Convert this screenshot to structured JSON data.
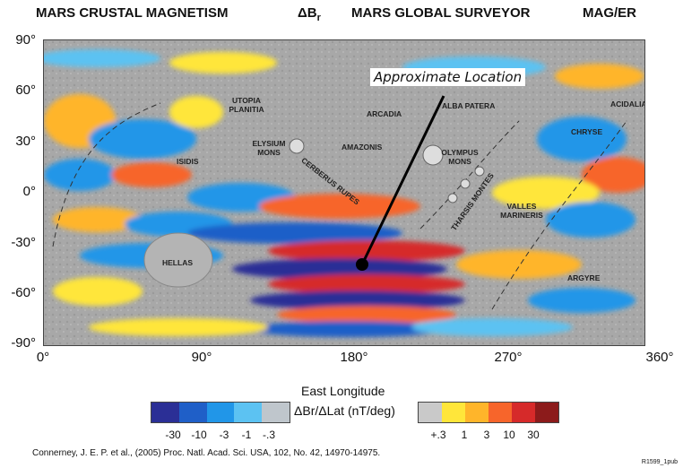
{
  "header": {
    "title": "MARS CRUSTAL MAGNETISM",
    "quantity_main": "ΔB",
    "quantity_sub": "r",
    "mission": "MARS GLOBAL SURVEYOR",
    "instrument": "MAG/ER"
  },
  "axes": {
    "y_ticks": [
      "90°",
      "60°",
      "30°",
      "0°",
      "-30°",
      "-60°",
      "-90°"
    ],
    "x_ticks": [
      "0°",
      "90°",
      "180°",
      "270°",
      "360°"
    ],
    "x_title": "East Longitude"
  },
  "regions": {
    "utopia": "UTOPIA PLANITIA",
    "arcadia": "ARCADIA",
    "alba": "ALBA PATERA",
    "acidalia": "ACIDALIA",
    "elysium": "ELYSIUM MONS",
    "amazonis": "AMAZONIS",
    "olympus": "OLYMPUS MONS",
    "chryse": "CHRYSE",
    "isidis": "ISIDIS",
    "cerberus": "CERBERUS RUPES",
    "tharsis": "THARSIS MONTES",
    "valles": "VALLES MARINERIS",
    "hellas": "HELLAS",
    "argyre": "ARGYRE"
  },
  "annotation": {
    "callout": "Approximate Location",
    "marker_lon": 180,
    "marker_lat": -45
  },
  "legend": {
    "label": "ΔBr/ΔLat (nT/deg)",
    "neg_ticks": [
      "-30",
      "-10",
      "-3",
      "-1",
      "-.3"
    ],
    "pos_ticks": [
      "+.3",
      "1",
      "3",
      "10",
      "30"
    ],
    "neg_colors": [
      "#2b2f96",
      "#1f5fc8",
      "#2196e8",
      "#5cc2f2",
      "#bfc6cc"
    ],
    "pos_colors": [
      "#c9c9c9",
      "#ffe63a",
      "#ffb52a",
      "#f7652b",
      "#d62a2a",
      "#8c1b1b"
    ]
  },
  "citation": "Connerney, J. E. P. et al., (2005) Proc. Natl. Acad. Sci. USA, 102, No. 42, 14970-14975.",
  "figure_id": "R1599_1pub"
}
